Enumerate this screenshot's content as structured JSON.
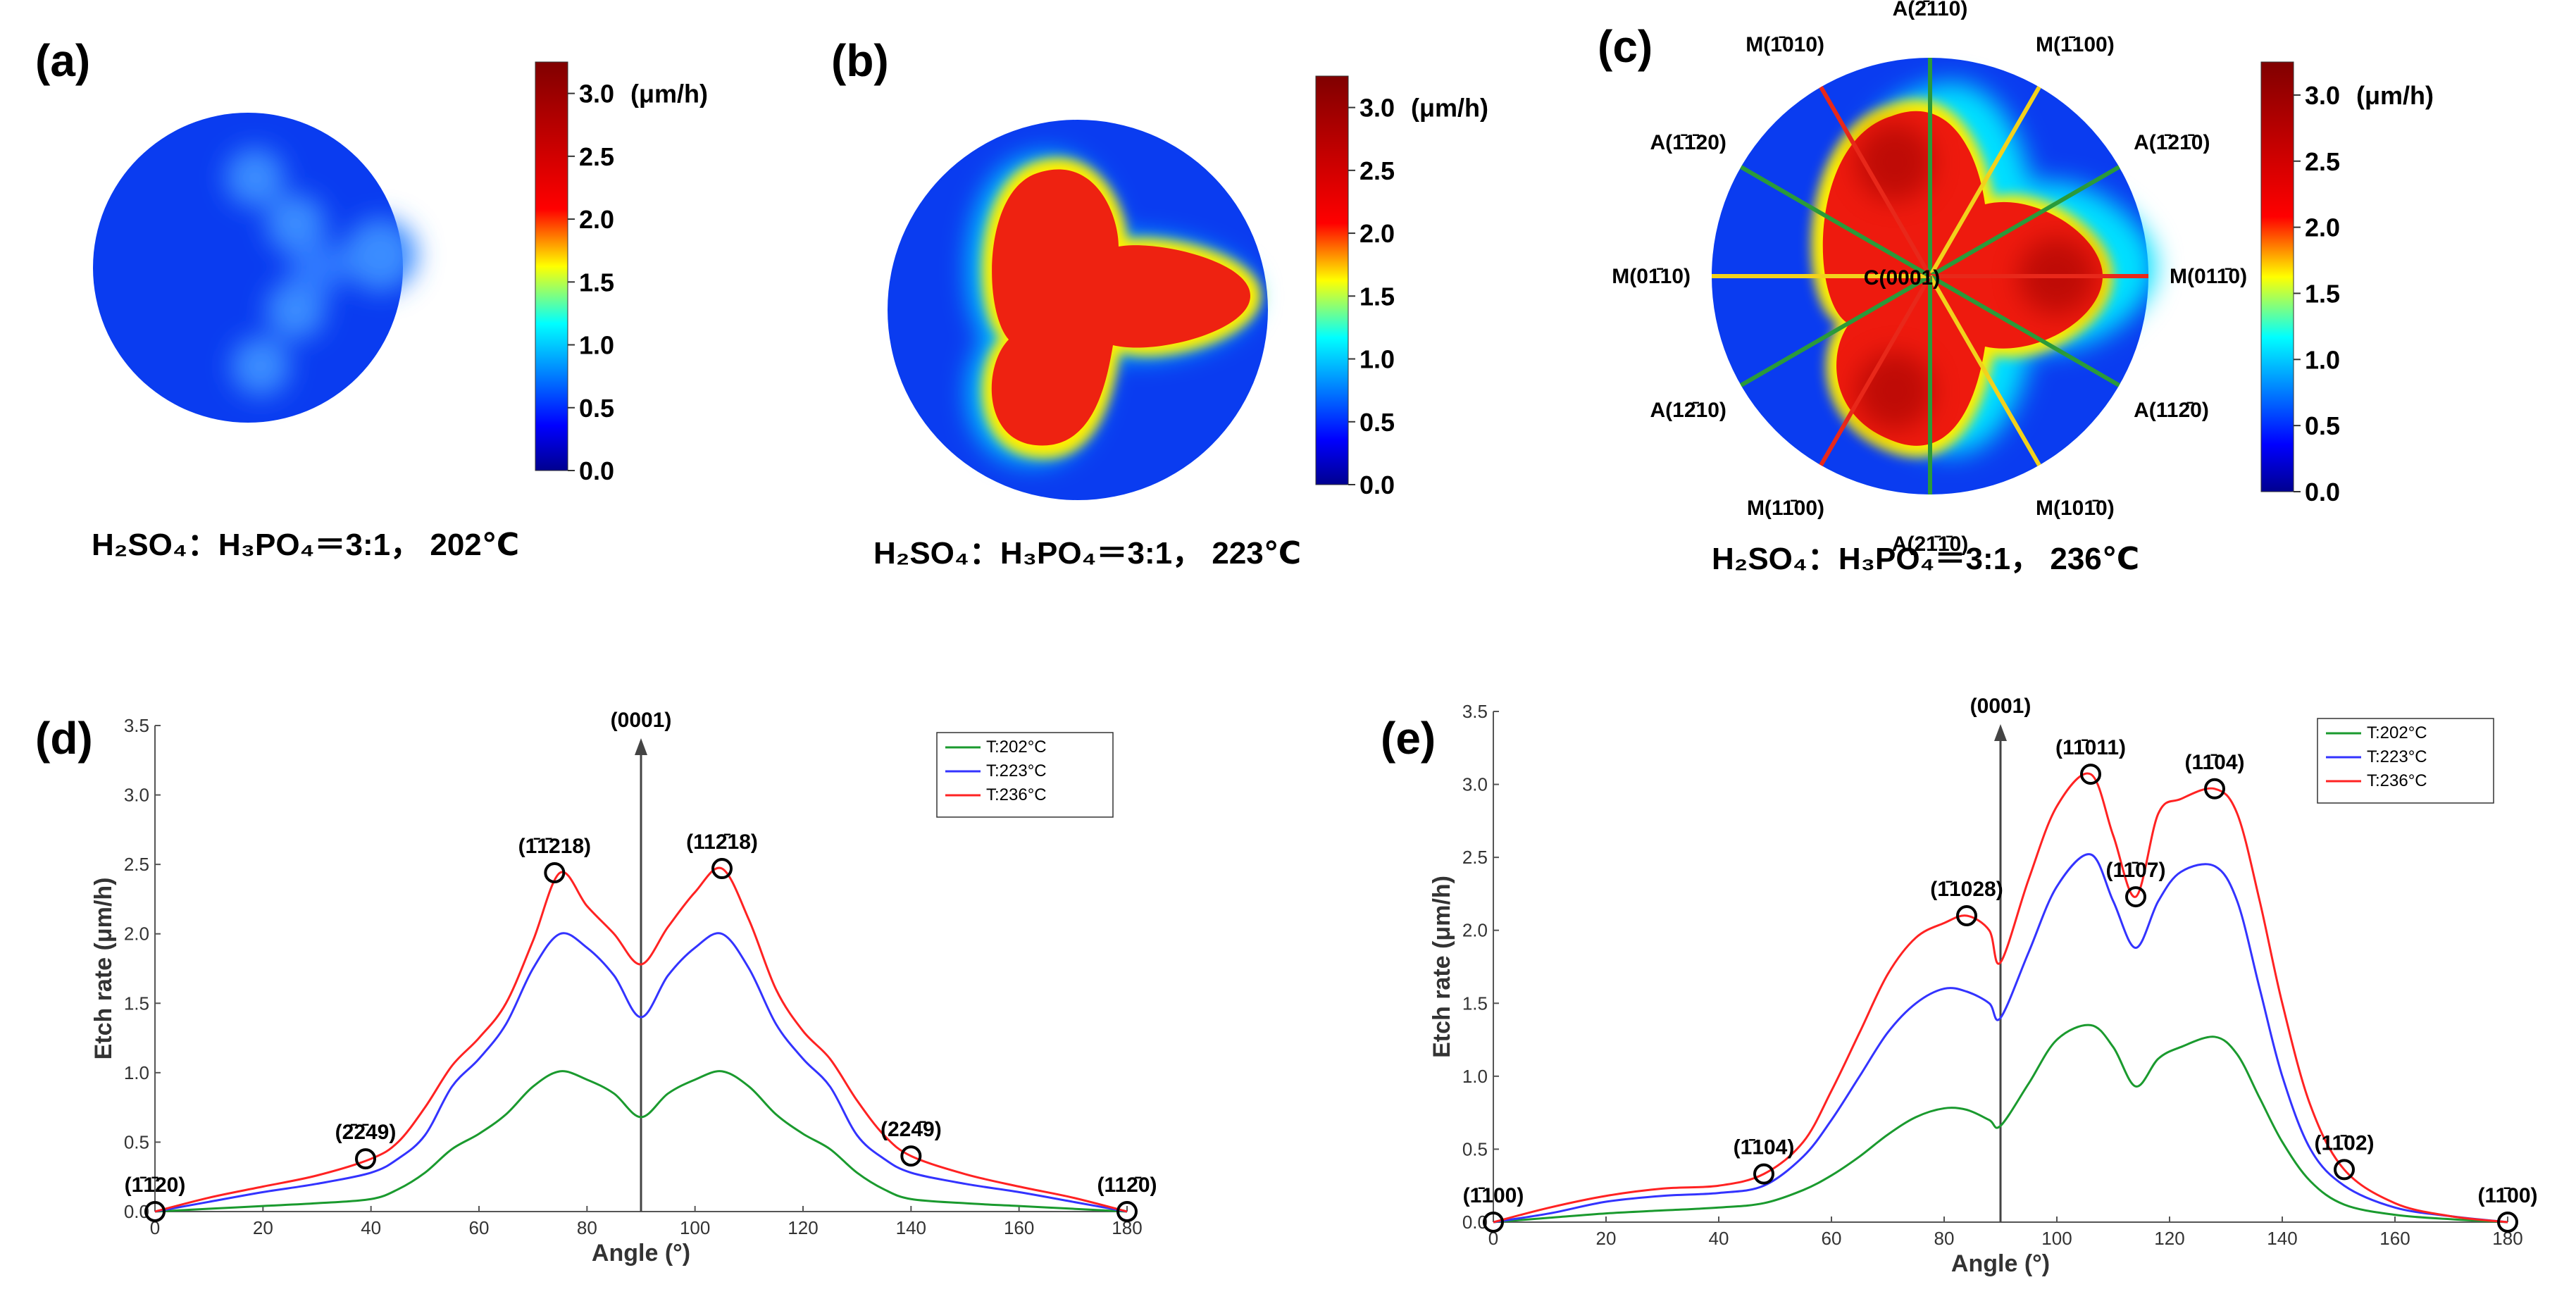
{
  "colorbar": {
    "ticks": [
      "0.0",
      "0.5",
      "1.0",
      "1.5",
      "2.0",
      "2.5",
      "3.0"
    ],
    "unit": "(μm/h)",
    "stops": [
      "#00008f",
      "#0000ff",
      "#00ffff",
      "#ffff00",
      "#ff0000",
      "#800000"
    ]
  },
  "maps": [
    {
      "label": "(a)",
      "condition": "H₂SO₄：H₃PO₄＝3:1， 202℃",
      "level": "low"
    },
    {
      "label": "(b)",
      "condition": "H₂SO₄：H₃PO₄＝3:1， 223℃",
      "level": "mid"
    },
    {
      "label": "(c)",
      "condition": "H₂SO₄：H₃PO₄＝3:1， 236℃",
      "level": "high",
      "center_label": "C(0001)",
      "directions": [
        {
          "text": "A(2̄110)",
          "color": "green"
        },
        {
          "text": "M(1̄100)",
          "color": "yellow"
        },
        {
          "text": "A(1̄21̄0)",
          "color": "green"
        },
        {
          "text": "M(011̄0)",
          "color": "red"
        },
        {
          "text": "A(112̄0)",
          "color": "green"
        },
        {
          "text": "M(101̄0)",
          "color": "yellow"
        },
        {
          "text": "A(21̄1̄0)",
          "color": "green"
        },
        {
          "text": "M(11̄00)",
          "color": "red"
        },
        {
          "text": "A(12̄10)",
          "color": "green"
        },
        {
          "text": "M(01̄10)",
          "color": "yellow"
        },
        {
          "text": "A(1̄1̄20)",
          "color": "green"
        },
        {
          "text": "M(1̄010)",
          "color": "red"
        }
      ]
    }
  ],
  "chart_data": [
    {
      "type": "line",
      "panel": "(d)",
      "xlabel": "Angle (°)",
      "ylabel": "Etch rate (μm/h)",
      "xlim": [
        0,
        180
      ],
      "ylim": [
        0,
        3.5
      ],
      "xticks": [
        "0",
        "20",
        "40",
        "60",
        "80",
        "100",
        "120",
        "140",
        "160",
        "180"
      ],
      "yticks": [
        "0.0",
        "0.5",
        "1.0",
        "1.5",
        "2.0",
        "2.5",
        "3.0",
        "3.5"
      ],
      "vline": {
        "x": 90,
        "label": "(0001)"
      },
      "x": [
        0,
        10,
        20,
        30,
        40,
        45,
        50,
        55,
        60,
        65,
        70,
        75,
        80,
        85,
        90,
        95,
        100,
        105,
        110,
        115,
        120,
        125,
        130,
        135,
        140,
        150,
        160,
        170,
        180
      ],
      "series": [
        {
          "name": "T:202°C",
          "color": "#1a9a2e",
          "values": [
            0,
            0.02,
            0.04,
            0.06,
            0.09,
            0.16,
            0.28,
            0.45,
            0.56,
            0.7,
            0.9,
            1.01,
            0.95,
            0.85,
            0.68,
            0.85,
            0.95,
            1.01,
            0.9,
            0.7,
            0.56,
            0.45,
            0.28,
            0.16,
            0.09,
            0.06,
            0.04,
            0.02,
            0
          ]
        },
        {
          "name": "T:223°C",
          "color": "#3333ff",
          "values": [
            0,
            0.07,
            0.14,
            0.2,
            0.28,
            0.38,
            0.55,
            0.9,
            1.1,
            1.35,
            1.75,
            2.0,
            1.9,
            1.7,
            1.4,
            1.7,
            1.9,
            2.0,
            1.75,
            1.35,
            1.1,
            0.9,
            0.55,
            0.38,
            0.28,
            0.2,
            0.14,
            0.07,
            0
          ]
        },
        {
          "name": "T:236°C",
          "color": "#ff2222",
          "values": [
            0,
            0.1,
            0.18,
            0.26,
            0.38,
            0.5,
            0.75,
            1.05,
            1.25,
            1.5,
            1.95,
            2.44,
            2.2,
            2.0,
            1.78,
            2.05,
            2.3,
            2.47,
            2.1,
            1.6,
            1.3,
            1.1,
            0.8,
            0.55,
            0.4,
            0.27,
            0.18,
            0.1,
            0
          ]
        }
      ],
      "legend": [
        "T:202°C",
        "T:223°C",
        "T:236°C"
      ],
      "peaks": [
        {
          "x": 0,
          "y": 0,
          "label": "(1̄1̄20)"
        },
        {
          "x": 39,
          "y": 0.38,
          "label": "(2̄2̄49)"
        },
        {
          "x": 74,
          "y": 2.44,
          "label": "(1̄1̄218)"
        },
        {
          "x": 105,
          "y": 2.47,
          "label": "(112̄18)"
        },
        {
          "x": 140,
          "y": 0.4,
          "label": "(224̄9)"
        },
        {
          "x": 180,
          "y": 0,
          "label": "(112̄0)"
        }
      ]
    },
    {
      "type": "line",
      "panel": "(e)",
      "xlabel": "Angle (°)",
      "ylabel": "Etch rate (μm/h)",
      "xlim": [
        0,
        180
      ],
      "ylim": [
        0,
        3.5
      ],
      "xticks": [
        "0",
        "20",
        "40",
        "60",
        "80",
        "100",
        "120",
        "140",
        "160",
        "180"
      ],
      "yticks": [
        "0.0",
        "0.5",
        "1.0",
        "1.5",
        "2.0",
        "2.5",
        "3.0",
        "3.5"
      ],
      "vline": {
        "x": 90,
        "label": "(0001)"
      },
      "x": [
        0,
        10,
        20,
        30,
        40,
        48,
        55,
        60,
        65,
        70,
        75,
        80,
        84,
        88,
        90,
        95,
        100,
        106,
        110,
        114,
        118,
        122,
        128,
        132,
        136,
        140,
        145,
        151,
        160,
        170,
        180
      ],
      "series": [
        {
          "name": "T:202°C",
          "color": "#1a9a2e",
          "values": [
            0,
            0.03,
            0.06,
            0.08,
            0.1,
            0.13,
            0.22,
            0.32,
            0.45,
            0.6,
            0.72,
            0.78,
            0.77,
            0.7,
            0.66,
            0.95,
            1.25,
            1.35,
            1.2,
            0.93,
            1.12,
            1.2,
            1.27,
            1.15,
            0.85,
            0.55,
            0.28,
            0.12,
            0.05,
            0.02,
            0
          ]
        },
        {
          "name": "T:223°C",
          "color": "#3333ff",
          "values": [
            0,
            0.06,
            0.14,
            0.18,
            0.2,
            0.25,
            0.45,
            0.7,
            1.0,
            1.3,
            1.5,
            1.6,
            1.58,
            1.5,
            1.4,
            1.85,
            2.3,
            2.52,
            2.2,
            1.88,
            2.2,
            2.4,
            2.44,
            2.2,
            1.6,
            1.0,
            0.5,
            0.25,
            0.1,
            0.04,
            0
          ]
        },
        {
          "name": "T:236°C",
          "color": "#ff2222",
          "values": [
            0,
            0.1,
            0.18,
            0.23,
            0.25,
            0.33,
            0.55,
            0.9,
            1.3,
            1.7,
            1.95,
            2.05,
            2.1,
            2.0,
            1.78,
            2.35,
            2.85,
            3.07,
            2.65,
            2.23,
            2.8,
            2.9,
            2.97,
            2.8,
            2.2,
            1.5,
            0.8,
            0.36,
            0.13,
            0.04,
            0
          ]
        }
      ],
      "legend": [
        "T:202°C",
        "T:223°C",
        "T:236°C"
      ],
      "peaks": [
        {
          "x": 0,
          "y": 0,
          "label": "(1̄100)"
        },
        {
          "x": 48,
          "y": 0.33,
          "label": "(1̄104)"
        },
        {
          "x": 84,
          "y": 2.1,
          "label": "(1̄1028)"
        },
        {
          "x": 106,
          "y": 3.07,
          "label": "(11̄011)"
        },
        {
          "x": 114,
          "y": 2.23,
          "label": "(11̄07)"
        },
        {
          "x": 128,
          "y": 2.97,
          "label": "(11̄04)"
        },
        {
          "x": 151,
          "y": 0.36,
          "label": "(11̄02)"
        },
        {
          "x": 180,
          "y": 0,
          "label": "(11̄00)"
        }
      ]
    }
  ]
}
